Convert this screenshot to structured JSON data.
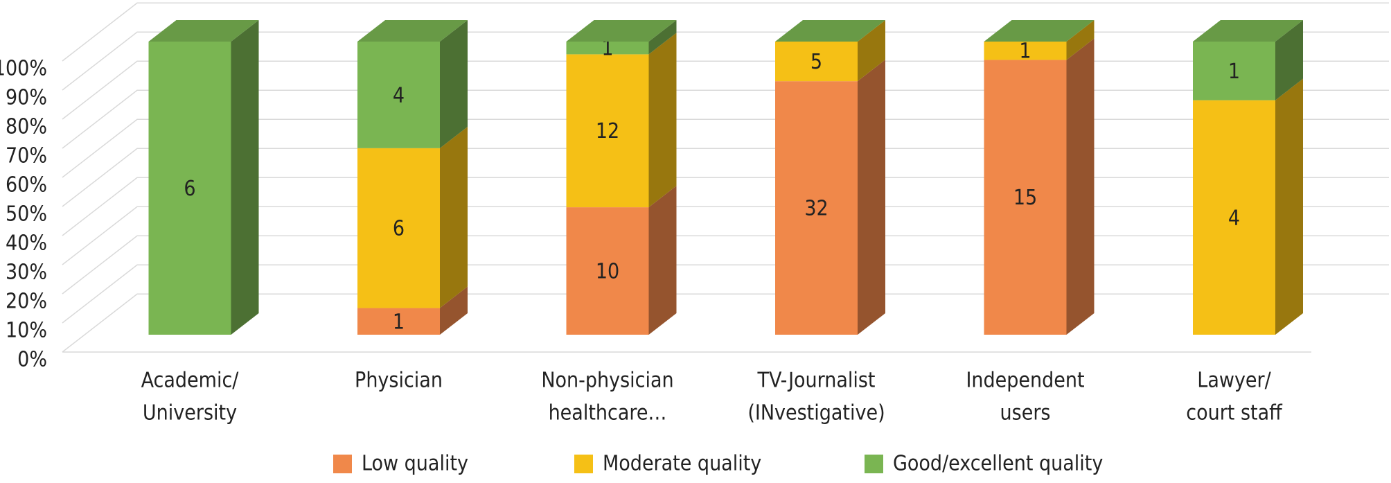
{
  "chart_data": {
    "type": "bar",
    "stacking": "percent",
    "categories": [
      [
        "Academic/",
        "University"
      ],
      [
        "Physician"
      ],
      [
        "Non-physician",
        "healthcare…"
      ],
      [
        "TV-Journalist",
        "(INvestigative)"
      ],
      [
        "Independent",
        "users"
      ],
      [
        "Lawyer/",
        "court staff"
      ]
    ],
    "series": [
      {
        "name": "Low quality",
        "color": "#F0884A",
        "values": [
          null,
          1,
          10,
          32,
          15,
          null
        ]
      },
      {
        "name": "Moderate quality",
        "color": "#F5C016",
        "values": [
          null,
          6,
          12,
          5,
          1,
          4
        ]
      },
      {
        "name": "Good/excellent quality",
        "color": "#7AB552",
        "values": [
          6,
          4,
          1,
          null,
          null,
          1
        ]
      }
    ],
    "ylim": [
      0,
      100
    ],
    "yticks": [
      {
        "value": 0,
        "label": "0%"
      },
      {
        "value": 10,
        "label": "10%"
      },
      {
        "value": 20,
        "label": "20%"
      },
      {
        "value": 30,
        "label": "30%"
      },
      {
        "value": 40,
        "label": "40%"
      },
      {
        "value": 50,
        "label": "50%"
      },
      {
        "value": 60,
        "label": "60%"
      },
      {
        "value": 70,
        "label": "70%"
      },
      {
        "value": 80,
        "label": "80%"
      },
      {
        "value": 90,
        "label": "90%"
      },
      {
        "value": 100,
        "label": "100%"
      }
    ],
    "grid": true,
    "legend": "bottom"
  }
}
